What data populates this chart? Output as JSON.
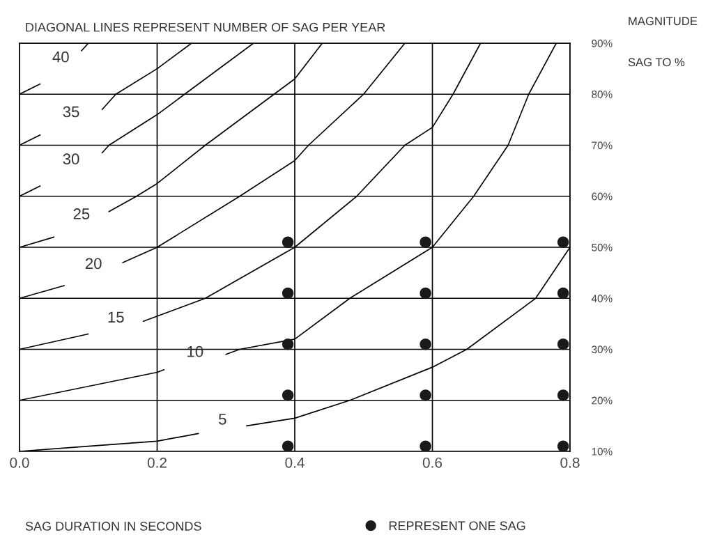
{
  "chart_data": {
    "type": "line",
    "title": "DIAGONAL LINES REPRESENT NUMBER OF SAG PER YEAR",
    "ylabel": "MAGNITUDE\nSAG TO %",
    "xlim": [
      0,
      0.8
    ],
    "xticks": [
      {
        "value": 0,
        "label": "0.0"
      },
      {
        "value": 0.2,
        "label": "0.2"
      },
      {
        "value": 0.4,
        "label": "0.4"
      },
      {
        "value": 0.6,
        "label": "0.6"
      },
      {
        "value": 0.8,
        "label": "0.8"
      }
    ],
    "ylim": [
      10,
      90
    ],
    "yticks": [
      {
        "value": 10,
        "label": "10%"
      },
      {
        "value": 20,
        "label": "20%"
      },
      {
        "value": 30,
        "label": "30%"
      },
      {
        "value": 40,
        "label": "40%"
      },
      {
        "value": 50,
        "label": "50%"
      },
      {
        "value": 60,
        "label": "60%"
      },
      {
        "value": 70,
        "label": "70%"
      },
      {
        "value": 80,
        "label": "80%"
      },
      {
        "value": 90,
        "label": "90%"
      }
    ],
    "grid": true,
    "legend": "bottom",
    "line_style": "solid",
    "series": [
      {
        "name": "5",
        "color": "#000000",
        "x": [
          0,
          0.1,
          0.2,
          0.26,
          0.3,
          0.33,
          0.4,
          0.48,
          0.6,
          0.65,
          0.75,
          0.8
        ],
        "values": [
          10,
          11,
          12,
          13.5,
          null,
          15,
          16.5,
          20,
          26.5,
          30,
          40,
          50
        ]
      },
      {
        "name": "10",
        "color": "#000000",
        "x": [
          0,
          0.2,
          0.21,
          0.25,
          0.3,
          0.32,
          0.4,
          0.48,
          0.6,
          0.66,
          0.71,
          0.74,
          0.78
        ],
        "values": [
          20,
          25.5,
          26,
          null,
          29,
          30,
          32,
          40,
          50,
          60,
          70,
          80,
          90
        ]
      },
      {
        "name": "15",
        "color": "#000000",
        "x": [
          0,
          0.1,
          0.14,
          0.18,
          0.27,
          0.4,
          0.49,
          0.56,
          0.6,
          0.63,
          0.67
        ],
        "values": [
          30,
          33,
          null,
          35.5,
          40,
          50,
          60,
          70,
          73.5,
          80,
          90
        ]
      },
      {
        "name": "20",
        "color": "#000000",
        "x": [
          0,
          0.065,
          0.1,
          0.15,
          0.2,
          0.32,
          0.4,
          0.42,
          0.5,
          0.56
        ],
        "values": [
          40,
          42.5,
          null,
          47,
          50,
          60,
          67,
          70,
          80,
          90
        ]
      },
      {
        "name": "25",
        "color": "#000000",
        "x": [
          0,
          0.05,
          0.09,
          0.13,
          0.17,
          0.2,
          0.27,
          0.4,
          0.44
        ],
        "values": [
          50,
          52,
          null,
          57,
          60,
          62.5,
          70,
          83,
          90
        ]
      },
      {
        "name": "30",
        "color": "#000000",
        "x": [
          0,
          0.03,
          0.07,
          0.12,
          0.13,
          0.2,
          0.24,
          0.34
        ],
        "values": [
          60,
          62,
          null,
          68.5,
          70,
          76,
          80,
          90
        ]
      },
      {
        "name": "35",
        "color": "#000000",
        "x": [
          0,
          0.03,
          0.07,
          0.12,
          0.14,
          0.2,
          0.25
        ],
        "values": [
          70,
          72,
          null,
          77,
          80,
          85,
          90
        ]
      },
      {
        "name": "40",
        "color": "#000000",
        "x": [
          0,
          0.03,
          0.07,
          0.09,
          0.1
        ],
        "values": [
          80,
          82,
          null,
          88.5,
          90
        ]
      },
      {
        "type": "scatter",
        "name": "REPRESENT ONE SAG",
        "color": "#1a1a1a",
        "marker": "circle",
        "x": [
          0.39,
          0.39,
          0.39,
          0.39,
          0.39,
          0.59,
          0.59,
          0.59,
          0.59,
          0.59,
          0.79,
          0.79,
          0.79,
          0.79,
          0.79
        ],
        "values": [
          11,
          21,
          31,
          41,
          51,
          11,
          21,
          31,
          41,
          51,
          11,
          21,
          31,
          41,
          51
        ]
      }
    ],
    "annotations": [
      "SAG DURATION IN SECONDS"
    ]
  }
}
